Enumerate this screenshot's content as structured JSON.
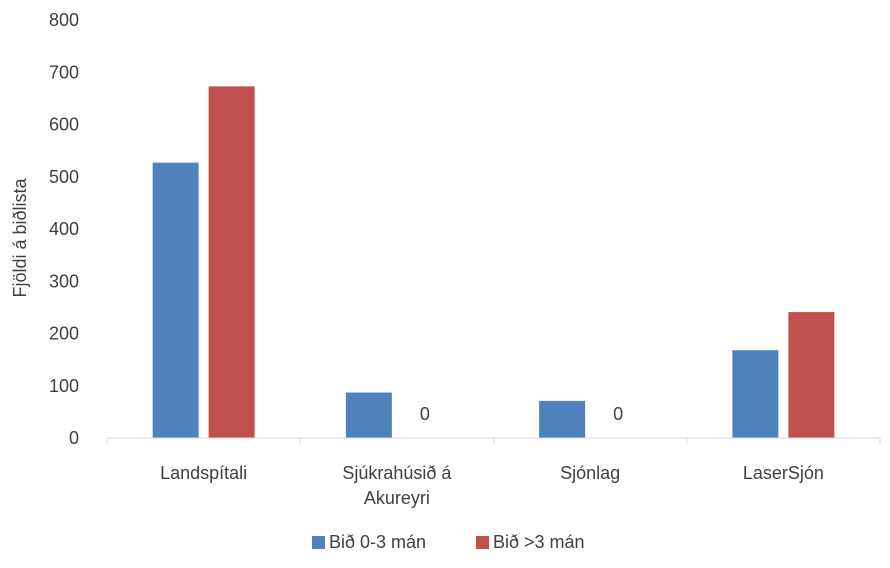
{
  "chart_data": {
    "type": "bar",
    "title": "",
    "xlabel": "",
    "ylabel": "Fjöldi á biðlista",
    "ylim": [
      0,
      800
    ],
    "yticks": [
      0,
      100,
      200,
      300,
      400,
      500,
      600,
      700,
      800
    ],
    "grid": false,
    "legend_position": "bottom",
    "categories": [
      [
        "Landspítali"
      ],
      [
        "Sjúkrahúsið á",
        "Akureyri"
      ],
      [
        "Sjónlag"
      ],
      [
        "LaserSjón"
      ]
    ],
    "series": [
      {
        "name": "Bið 0-3 mán",
        "color": "#4f81bd",
        "values": [
          527,
          87,
          71,
          168
        ]
      },
      {
        "name": "Bið >3 mán",
        "color": "#c0504d",
        "values": [
          673,
          0,
          0,
          241
        ]
      }
    ],
    "data_labels": [
      {
        "category_index": 1,
        "series_index": 1,
        "text": "0"
      },
      {
        "category_index": 2,
        "series_index": 1,
        "text": "0"
      }
    ]
  }
}
